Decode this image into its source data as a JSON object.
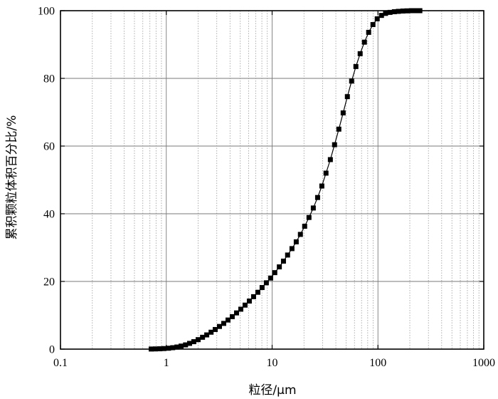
{
  "chart_data": {
    "type": "scatter",
    "title": "",
    "xlabel": "粒径/μm",
    "ylabel": "累积颗粒体积百分比/%",
    "xscale": "log",
    "xlim": [
      0.1,
      1000
    ],
    "ylim": [
      0,
      100
    ],
    "x_ticks": [
      "0.1",
      "1",
      "10",
      "100",
      "1000"
    ],
    "y_ticks": [
      "0",
      "20",
      "40",
      "60",
      "80",
      "100"
    ],
    "grid": "major solid, minor dotted (x)",
    "marker": "filled-square",
    "line": "connected",
    "color": "#000000",
    "series": [
      {
        "x": [
          0.72,
          0.79,
          0.87,
          0.95,
          1.05,
          1.15,
          1.26,
          1.38,
          1.52,
          1.66,
          1.82,
          2.0,
          2.2,
          2.41,
          2.65,
          2.9,
          3.18,
          3.49,
          3.83,
          4.2,
          4.61,
          5.06,
          5.55,
          6.09,
          6.68,
          7.33,
          8.04,
          8.82,
          9.68,
          10.6,
          11.7,
          12.8,
          14.0,
          15.4,
          16.9,
          18.5,
          20.3,
          22.3,
          24.5,
          26.9,
          29.5,
          32.3,
          35.5,
          38.9,
          42.7,
          46.9,
          51.4,
          56.4,
          61.9,
          67.9,
          74.5,
          81.7,
          89.7,
          98.4,
          108,
          118,
          130,
          143,
          156,
          172,
          188,
          207,
          227,
          249
        ],
        "y": [
          0.03,
          0.06,
          0.1,
          0.17,
          0.27,
          0.42,
          0.62,
          0.9,
          1.25,
          1.7,
          2.2,
          2.8,
          3.5,
          4.2,
          5.0,
          5.8,
          6.7,
          7.6,
          8.6,
          9.6,
          10.7,
          11.8,
          13.0,
          14.2,
          15.5,
          16.8,
          18.2,
          19.6,
          21.0,
          22.6,
          24.3,
          26.0,
          27.8,
          29.7,
          31.7,
          33.9,
          36.3,
          38.9,
          41.7,
          44.8,
          48.2,
          52.0,
          56.0,
          60.4,
          65.0,
          69.8,
          74.6,
          79.2,
          83.5,
          87.3,
          90.7,
          93.6,
          95.9,
          97.6,
          98.6,
          99.2,
          99.5,
          99.7,
          99.8,
          99.9,
          99.95,
          100,
          100,
          100
        ]
      }
    ]
  }
}
